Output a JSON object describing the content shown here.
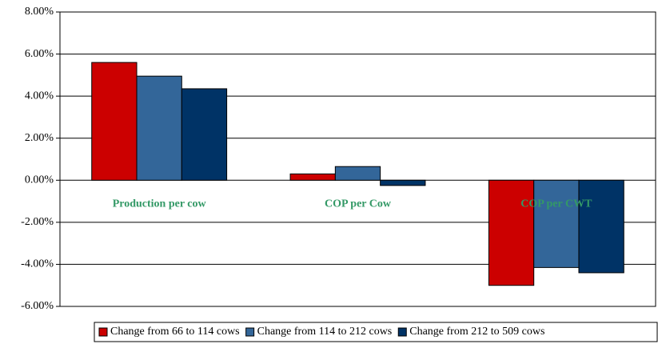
{
  "chart_data": {
    "type": "bar",
    "categories": [
      "Production per cow",
      "COP per Cow",
      "COP per CWT"
    ],
    "series": [
      {
        "name": "Change from 66 to 114 cows",
        "color": "#cc0000",
        "values": [
          5.6,
          0.3,
          -5.0
        ]
      },
      {
        "name": "Change from 114 to 212 cows",
        "color": "#336699",
        "values": [
          4.95,
          0.65,
          -4.15
        ]
      },
      {
        "name": "Change from 212 to 509 cows",
        "color": "#003366",
        "values": [
          4.35,
          -0.25,
          -4.4
        ]
      }
    ],
    "ylim": [
      -6,
      8
    ],
    "yticks": [
      {
        "value": -6,
        "label": "-6.00%"
      },
      {
        "value": -4,
        "label": "-4.00%"
      },
      {
        "value": -2,
        "label": "-2.00%"
      },
      {
        "value": 0,
        "label": "0.00%"
      },
      {
        "value": 2,
        "label": "2.00%"
      },
      {
        "value": 4,
        "label": "4.00%"
      },
      {
        "value": 6,
        "label": "6.00%"
      },
      {
        "value": 8,
        "label": "8.00%"
      }
    ],
    "grid": true,
    "legend": "bottom"
  }
}
